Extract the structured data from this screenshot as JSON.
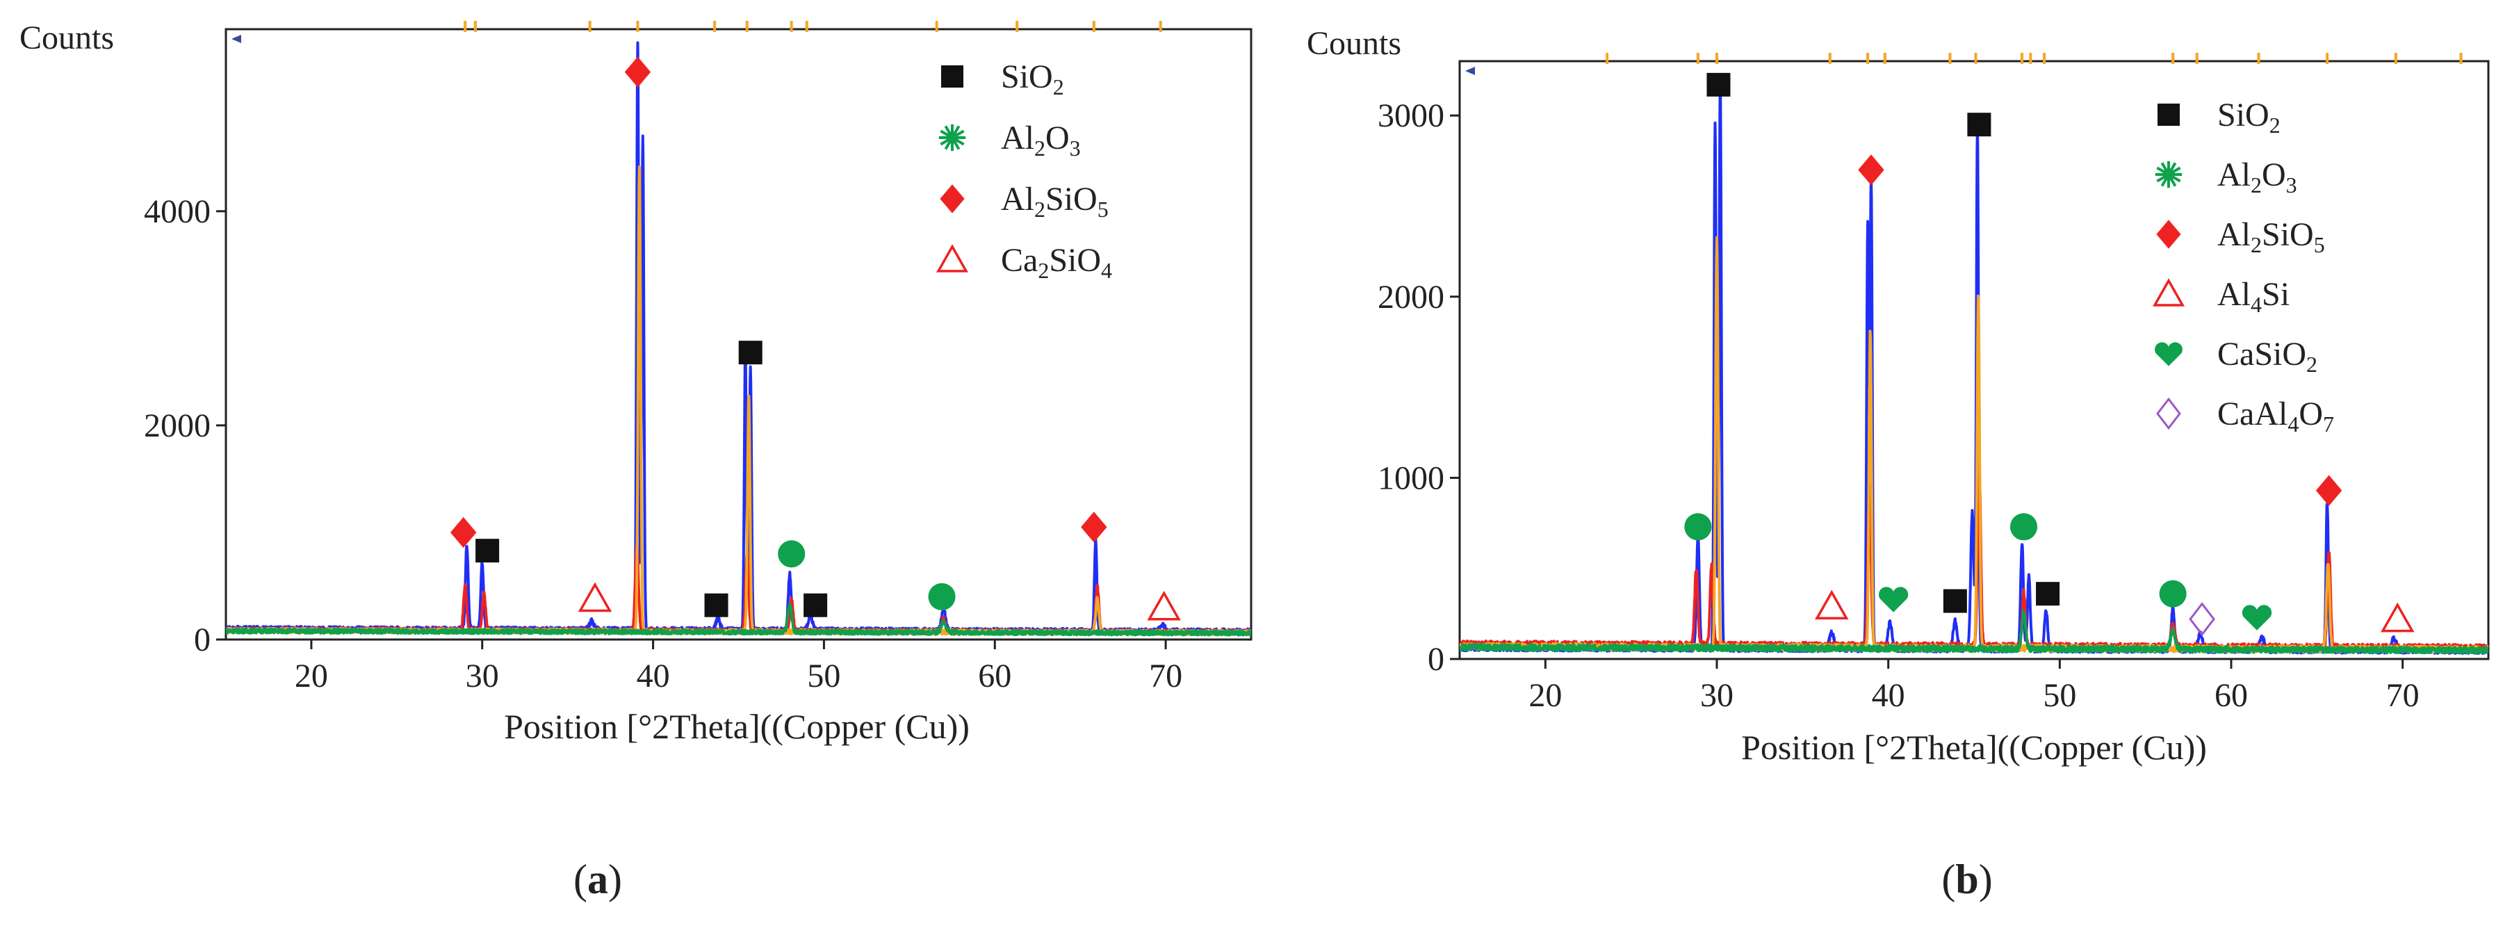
{
  "colors": {
    "frame": "#222222",
    "blue": "#1f2ff5",
    "red": "#ee2222",
    "orange": "#f5a623",
    "green": "#0fa14c",
    "purple": "#9b59c8",
    "black": "#111111"
  },
  "chart_data": [
    {
      "type": "line",
      "panel_label": "a",
      "ylabel": "Counts",
      "xlabel": "Position [°2Theta]((Copper (Cu))",
      "xlim": [
        15,
        75
      ],
      "ylim": [
        0,
        5700
      ],
      "xticks": [
        20,
        30,
        40,
        50,
        60,
        70
      ],
      "yticks": [
        0,
        2000,
        4000
      ],
      "series": [
        {
          "name": "blue pattern",
          "color": "#1f2ff5",
          "baseline": 100,
          "peaks": [
            [
              29.1,
              780,
              0.18
            ],
            [
              30.0,
              620,
              0.18
            ],
            [
              36.4,
              80,
              0.3
            ],
            [
              39.1,
              5500,
              0.14
            ],
            [
              39.4,
              4600,
              0.14
            ],
            [
              43.8,
              120,
              0.25
            ],
            [
              45.4,
              2600,
              0.14
            ],
            [
              45.7,
              2450,
              0.14
            ],
            [
              48.0,
              520,
              0.2
            ],
            [
              49.2,
              150,
              0.25
            ],
            [
              57.0,
              200,
              0.25
            ],
            [
              65.9,
              850,
              0.15
            ],
            [
              69.8,
              60,
              0.3
            ]
          ]
        },
        {
          "name": "red pattern",
          "color": "#ee2222",
          "baseline": 90,
          "peaks": [
            [
              29.0,
              420,
              0.2
            ],
            [
              30.1,
              350,
              0.2
            ],
            [
              39.05,
              820,
              0.2
            ],
            [
              45.5,
              730,
              0.2
            ],
            [
              48.1,
              300,
              0.2
            ],
            [
              57.0,
              120,
              0.25
            ],
            [
              66.0,
              420,
              0.2
            ]
          ]
        },
        {
          "name": "orange pattern",
          "color": "#f5a623",
          "baseline": 85,
          "peaks": [
            [
              39.2,
              4350,
              0.16
            ],
            [
              45.6,
              2200,
              0.16
            ],
            [
              66.0,
              320,
              0.2
            ]
          ]
        },
        {
          "name": "green pattern",
          "color": "#0fa14c",
          "baseline": 80,
          "peaks": [
            [
              48.0,
              260,
              0.25
            ],
            [
              57.0,
              100,
              0.3
            ]
          ]
        }
      ],
      "reference_ticks": [
        29.0,
        29.6,
        36.3,
        39.1,
        43.6,
        45.5,
        48.1,
        49.0,
        56.6,
        61.3,
        65.8,
        69.7
      ],
      "markers": [
        {
          "symbol": "diamond",
          "phase": "Al2SiO5",
          "x": 28.9,
          "y": 1000
        },
        {
          "symbol": "square",
          "phase": "SiO2",
          "x": 30.3,
          "y": 830
        },
        {
          "symbol": "triangle",
          "phase": "Ca2SiO4",
          "x": 36.6,
          "y": 380
        },
        {
          "symbol": "diamond",
          "phase": "Al2SiO5",
          "x": 39.1,
          "y": 5300
        },
        {
          "symbol": "square",
          "phase": "SiO2",
          "x": 43.7,
          "y": 320
        },
        {
          "symbol": "square",
          "phase": "SiO2",
          "x": 45.7,
          "y": 2680
        },
        {
          "symbol": "blob",
          "phase": "Al2O3",
          "x": 48.1,
          "y": 800
        },
        {
          "symbol": "square",
          "phase": "SiO2",
          "x": 49.5,
          "y": 320
        },
        {
          "symbol": "blob",
          "phase": "Al2O3",
          "x": 56.9,
          "y": 400
        },
        {
          "symbol": "diamond",
          "phase": "Al2SiO5",
          "x": 65.8,
          "y": 1050
        },
        {
          "symbol": "triangle",
          "phase": "Ca2SiO4",
          "x": 69.9,
          "y": 300
        }
      ],
      "legend": [
        {
          "symbol": "square",
          "base": "SiO",
          "sub": "2",
          "rest": ""
        },
        {
          "symbol": "star",
          "base": "Al",
          "sub": "2",
          "rest": "O",
          "sub2": "3"
        },
        {
          "symbol": "diamond",
          "base": "Al",
          "sub": "2",
          "rest": "SiO",
          "sub2": "5"
        },
        {
          "symbol": "triangle",
          "base": "Ca",
          "sub": "2",
          "rest": "SiO",
          "sub2": "4"
        }
      ]
    },
    {
      "type": "line",
      "panel_label": "b",
      "ylabel": "Counts",
      "xlabel": "Position [°2Theta]((Copper (Cu))",
      "xlim": [
        15,
        75
      ],
      "ylim": [
        0,
        3300
      ],
      "xticks": [
        20,
        30,
        40,
        50,
        60,
        70
      ],
      "yticks": [
        0,
        1000,
        2000,
        3000
      ],
      "series": [
        {
          "name": "blue pattern",
          "color": "#1f2ff5",
          "baseline": 60,
          "peaks": [
            [
              28.9,
              620,
              0.18
            ],
            [
              29.9,
              2900,
              0.14
            ],
            [
              30.2,
              3150,
              0.14
            ],
            [
              36.7,
              90,
              0.3
            ],
            [
              38.8,
              2350,
              0.14
            ],
            [
              39.0,
              2600,
              0.14
            ],
            [
              40.1,
              150,
              0.25
            ],
            [
              43.9,
              160,
              0.25
            ],
            [
              44.9,
              760,
              0.2
            ],
            [
              45.2,
              2900,
              0.14
            ],
            [
              47.8,
              580,
              0.18
            ],
            [
              48.2,
              400,
              0.18
            ],
            [
              49.2,
              220,
              0.2
            ],
            [
              56.6,
              230,
              0.2
            ],
            [
              58.2,
              90,
              0.3
            ],
            [
              61.8,
              70,
              0.3
            ],
            [
              65.6,
              820,
              0.15
            ],
            [
              69.5,
              70,
              0.3
            ]
          ]
        },
        {
          "name": "red pattern",
          "color": "#ee2222",
          "baseline": 80,
          "peaks": [
            [
              28.8,
              420,
              0.2
            ],
            [
              29.7,
              440,
              0.2
            ],
            [
              38.9,
              900,
              0.2
            ],
            [
              45.3,
              1000,
              0.2
            ],
            [
              47.9,
              300,
              0.2
            ],
            [
              56.6,
              120,
              0.25
            ],
            [
              65.7,
              540,
              0.2
            ]
          ]
        },
        {
          "name": "orange pattern",
          "color": "#f5a623",
          "baseline": 70,
          "peaks": [
            [
              30.0,
              2250,
              0.16
            ],
            [
              38.95,
              1750,
              0.16
            ],
            [
              45.25,
              1950,
              0.16
            ],
            [
              65.65,
              480,
              0.2
            ]
          ]
        },
        {
          "name": "green pattern",
          "color": "#0fa14c",
          "baseline": 65,
          "peaks": [
            [
              47.9,
              200,
              0.25
            ],
            [
              56.6,
              100,
              0.3
            ]
          ]
        }
      ],
      "reference_ticks": [
        23.6,
        28.9,
        30.0,
        36.6,
        38.8,
        39.8,
        43.6,
        45.1,
        47.8,
        48.3,
        49.1,
        56.6,
        58.0,
        61.6,
        65.6,
        69.6,
        73.4
      ],
      "markers": [
        {
          "symbol": "blob",
          "phase": "Al2O3",
          "x": 28.9,
          "y": 730
        },
        {
          "symbol": "square",
          "phase": "SiO2",
          "x": 30.1,
          "y": 3170
        },
        {
          "symbol": "triangle",
          "phase": "Al4Si",
          "x": 36.7,
          "y": 290
        },
        {
          "symbol": "diamond",
          "phase": "Al2SiO5",
          "x": 39.0,
          "y": 2700
        },
        {
          "symbol": "heart",
          "phase": "CaSiO2",
          "x": 40.3,
          "y": 330
        },
        {
          "symbol": "square",
          "phase": "SiO2",
          "x": 43.9,
          "y": 320
        },
        {
          "symbol": "square",
          "phase": "SiO2",
          "x": 45.3,
          "y": 2950
        },
        {
          "symbol": "blob",
          "phase": "Al2O3",
          "x": 47.9,
          "y": 730
        },
        {
          "symbol": "square",
          "phase": "SiO2",
          "x": 49.3,
          "y": 360
        },
        {
          "symbol": "blob",
          "phase": "Al2O3",
          "x": 56.6,
          "y": 360
        },
        {
          "symbol": "hollow-diamond",
          "phase": "CaAl4O7",
          "x": 58.3,
          "y": 220
        },
        {
          "symbol": "heart",
          "phase": "CaSiO2",
          "x": 61.5,
          "y": 230
        },
        {
          "symbol": "diamond",
          "phase": "Al2SiO5",
          "x": 65.7,
          "y": 930
        },
        {
          "symbol": "triangle",
          "phase": "Al4Si",
          "x": 69.7,
          "y": 220
        }
      ],
      "legend": [
        {
          "symbol": "square",
          "base": "SiO",
          "sub": "2",
          "rest": ""
        },
        {
          "symbol": "star",
          "base": "Al",
          "sub": "2",
          "rest": "O",
          "sub2": "3"
        },
        {
          "symbol": "diamond",
          "base": "Al",
          "sub": "2",
          "rest": "SiO",
          "sub2": "5"
        },
        {
          "symbol": "triangle",
          "base": "Al",
          "sub": "4",
          "rest": "Si"
        },
        {
          "symbol": "heart",
          "base": "CaSiO",
          "sub": "2",
          "rest": ""
        },
        {
          "symbol": "hollow-diamond",
          "base": "CaAl",
          "sub": "4",
          "rest": "O",
          "sub2": "7"
        }
      ]
    }
  ]
}
